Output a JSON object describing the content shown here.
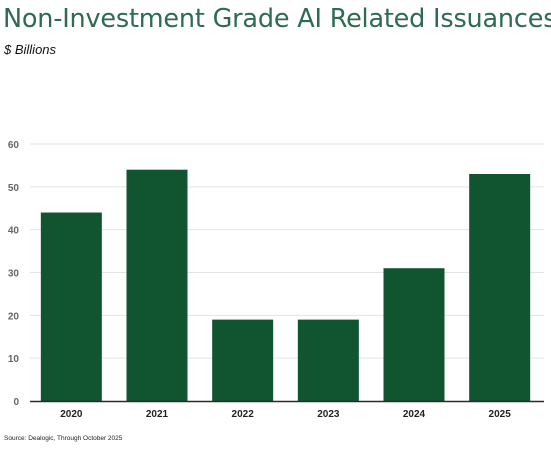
{
  "title": "Non-Investment Grade AI Related Issuances",
  "subtitle": "$ Billions",
  "source": "Source: Dealogic, Through October 2025",
  "colors": {
    "bar": "#10552f",
    "title": "#2e6b52",
    "grid": "#e3e3e3",
    "axis": "#2b2b2b",
    "tick_y": "#666666",
    "tick_x": "#222222"
  },
  "chart_data": {
    "type": "bar",
    "categories": [
      "2020",
      "2021",
      "2022",
      "2023",
      "2024",
      "2025"
    ],
    "values": [
      44,
      54,
      19,
      19,
      31,
      53
    ],
    "title": "Non-Investment Grade AI Related Issuances",
    "subtitle": "$ Billions",
    "xlabel": "",
    "ylabel": "",
    "ylim": [
      0,
      60
    ],
    "yticks": [
      "0",
      "10",
      "20",
      "30",
      "40",
      "50",
      "60"
    ],
    "grid": true,
    "legend": "none"
  }
}
